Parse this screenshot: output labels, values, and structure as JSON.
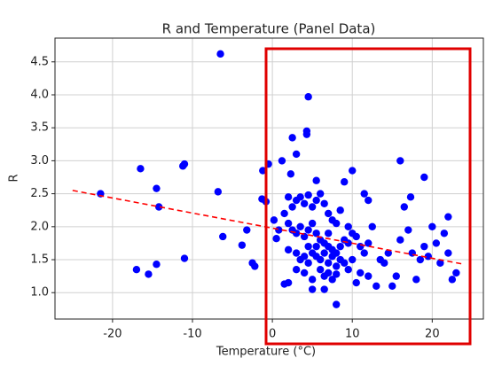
{
  "chart_data": {
    "type": "scatter",
    "title": "R and Temperature (Panel Data)",
    "x_label": "Temperature (°C)",
    "y_label": "R",
    "color": "#0000ff",
    "grid": true,
    "xlim": [
      -27.2,
      26.4
    ],
    "ylim": [
      0.6,
      4.86
    ],
    "xticks": [
      -20,
      -10,
      0,
      10,
      20
    ],
    "yticks": [
      {
        "value": 1,
        "label": "1.0"
      },
      1.5,
      {
        "value": 2,
        "label": "2.0"
      },
      2.5,
      {
        "value": 3,
        "label": "3.0"
      },
      3.5,
      {
        "value": 4,
        "label": "4.0"
      },
      4.5
    ],
    "x": [
      -21.5,
      -16.5,
      -17,
      -15.5,
      -14.5,
      -14.2,
      -14.5,
      -11.2,
      -11,
      -11,
      -6.5,
      -6.8,
      -6.2,
      -3.8,
      -3.2,
      -2.5,
      -2.2,
      -1.2,
      -1.3,
      -0.8,
      -0.5,
      0.2,
      0.5,
      0.8,
      1.2,
      1.5,
      2.3,
      2.5,
      3,
      4.3,
      4.3,
      4.5,
      5.5,
      2,
      2.5,
      3,
      3.5,
      4,
      4.5,
      5,
      5.5,
      6,
      6.5,
      7,
      7.5,
      8,
      1.5,
      2,
      2.5,
      3,
      3.5,
      4,
      4.5,
      5,
      5.5,
      6,
      6.5,
      7,
      7.5,
      8,
      8.5,
      9,
      9.5,
      10,
      10.5,
      11,
      11.5,
      12,
      3,
      3.5,
      4,
      4.5,
      5,
      5.5,
      6,
      6.5,
      7,
      7.5,
      8,
      8.5,
      9,
      9.5,
      10,
      6,
      6.5,
      7,
      7.5,
      8,
      5,
      4,
      3,
      2,
      8,
      6.5,
      5,
      2,
      9,
      10,
      11.5,
      12,
      12.5,
      11,
      13,
      13.5,
      14,
      15,
      15.5,
      16,
      16,
      16.5,
      17,
      17.3,
      17.5,
      18,
      18.5,
      19,
      19,
      19.5,
      20,
      20.5,
      21,
      21.5,
      22,
      22,
      22.5,
      23,
      10.5,
      12,
      14.5,
      7,
      8.5,
      9.5,
      5.5,
      4.5
    ],
    "values": [
      2.5,
      2.88,
      1.35,
      1.28,
      2.58,
      2.3,
      1.43,
      2.92,
      2.95,
      1.52,
      4.62,
      2.53,
      1.85,
      1.72,
      1.95,
      1.45,
      1.4,
      2.85,
      2.42,
      2.38,
      2.95,
      2.1,
      1.82,
      1.95,
      3.0,
      1.13,
      2.8,
      3.35,
      3.1,
      3.45,
      3.4,
      3.97,
      2.7,
      2.45,
      2.3,
      2.4,
      2.45,
      2.35,
      2.48,
      2.3,
      2.4,
      2.5,
      2.35,
      2.2,
      2.1,
      2.05,
      2.2,
      2.05,
      1.95,
      1.9,
      2.0,
      1.85,
      1.95,
      2.05,
      1.9,
      1.8,
      1.75,
      1.7,
      1.65,
      1.6,
      1.7,
      1.8,
      1.75,
      1.9,
      1.85,
      1.7,
      1.6,
      1.75,
      1.6,
      1.5,
      1.55,
      1.45,
      1.6,
      1.55,
      1.5,
      1.6,
      1.45,
      1.55,
      1.4,
      1.5,
      1.45,
      1.35,
      1.5,
      1.35,
      1.25,
      1.3,
      1.2,
      1.28,
      1.2,
      1.3,
      1.35,
      1.65,
      0.82,
      1.05,
      1.05,
      1.15,
      2.68,
      2.85,
      2.5,
      2.4,
      2.0,
      1.3,
      1.1,
      1.5,
      1.45,
      1.1,
      1.25,
      1.8,
      3.0,
      2.3,
      1.95,
      2.45,
      1.6,
      1.2,
      1.5,
      2.75,
      1.7,
      1.55,
      2.0,
      1.75,
      1.45,
      1.9,
      2.15,
      1.6,
      1.2,
      1.3,
      1.15,
      1.25,
      1.6,
      1.9,
      2.25,
      2.0,
      1.7,
      1.7
    ],
    "trend": {
      "x": [
        -25,
        24
      ],
      "values": [
        2.55,
        1.43
      ],
      "color": "#ff0000"
    }
  }
}
